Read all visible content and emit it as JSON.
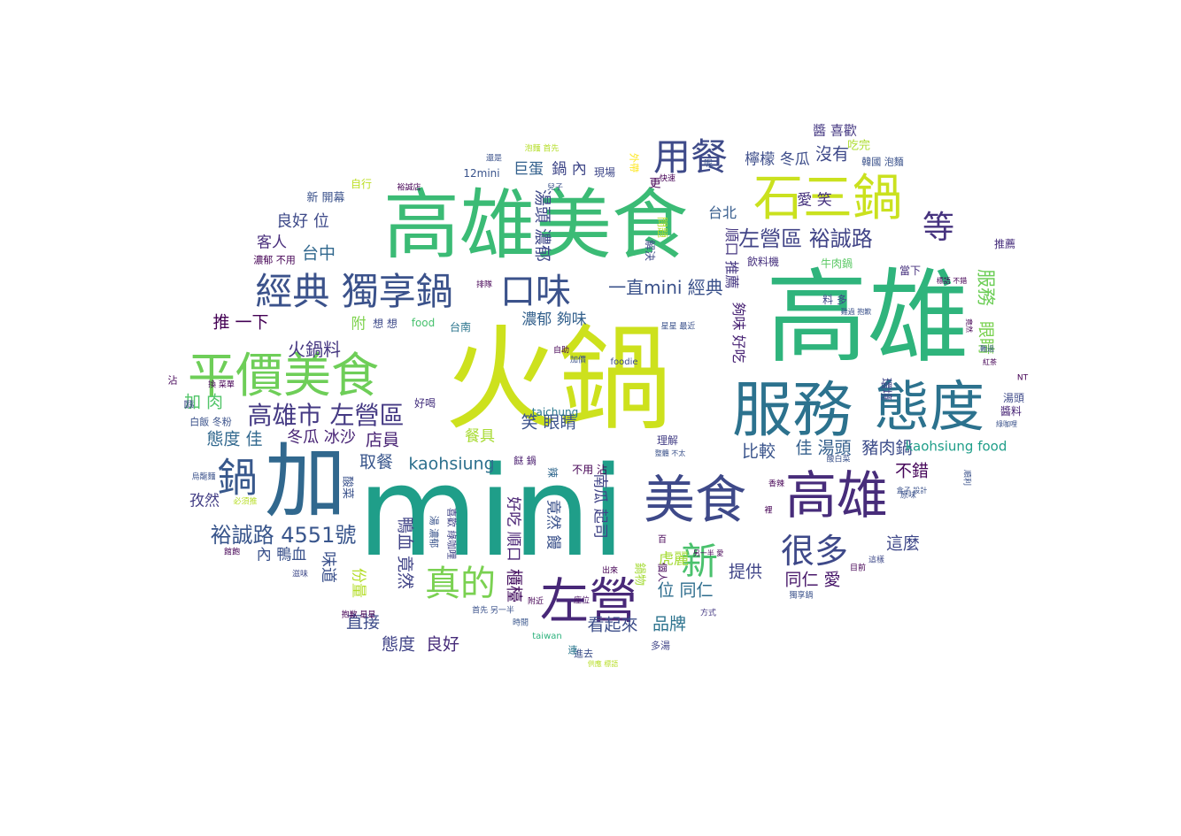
{
  "words": [
    {
      "text": "火鍋",
      "color": "#cde11d"
    },
    {
      "text": "mini",
      "color": "#1f9e89"
    },
    {
      "text": "高雄",
      "color": "#2fb47c"
    },
    {
      "text": "高雄美食",
      "color": "#3bbb75"
    },
    {
      "text": "加",
      "color": "#31688e"
    },
    {
      "text": "服務",
      "color": "#2c728e"
    },
    {
      "text": "態度",
      "color": "#2c728e"
    },
    {
      "text": "美食",
      "color": "#3e4989"
    },
    {
      "text": "高雄",
      "color": "#472c7a"
    },
    {
      "text": "左營",
      "color": "#482878"
    },
    {
      "text": "平價美食",
      "color": "#6ece58"
    },
    {
      "text": "石三鍋",
      "color": "#cae11f"
    },
    {
      "text": "經典 獨享鍋",
      "color": "#3b528b"
    },
    {
      "text": "用餐",
      "color": "#3e4a89"
    },
    {
      "text": "口味",
      "color": "#3b528b"
    },
    {
      "text": "鍋",
      "color": "#38588c"
    },
    {
      "text": "真的",
      "color": "#7ad151"
    },
    {
      "text": "很多",
      "color": "#3e4989"
    },
    {
      "text": "新",
      "color": "#4ac16d"
    },
    {
      "text": "等",
      "color": "#46337f"
    },
    {
      "text": "高雄市 左營區",
      "color": "#443983"
    },
    {
      "text": "左營區 裕誠路",
      "color": "#414487"
    },
    {
      "text": "裕誠路 4551號",
      "color": "#39568c"
    },
    {
      "text": "一直mini 經典",
      "color": "#3b528b"
    },
    {
      "text": "kaohsiung",
      "color": "#2d708e"
    },
    {
      "text": "服務",
      "color": "#6ece58"
    },
    {
      "text": "眼睛",
      "color": "#7ad151"
    },
    {
      "text": "火鍋料",
      "color": "#453781"
    },
    {
      "text": "推 一下",
      "color": "#440154"
    },
    {
      "text": "加 肉",
      "color": "#52c569"
    },
    {
      "text": "態度 佳",
      "color": "#31688e"
    },
    {
      "text": "冬瓜 冰沙",
      "color": "#482475"
    },
    {
      "text": "店員",
      "color": "#482374"
    },
    {
      "text": "取餐",
      "color": "#39568c"
    },
    {
      "text": "比較",
      "color": "#3a548c"
    },
    {
      "text": "佳 湯頭",
      "color": "#35608d"
    },
    {
      "text": "豬肉鍋",
      "color": "#3d4d8a"
    },
    {
      "text": "kaohsiung food",
      "color": "#1f9e89"
    },
    {
      "text": "不錯",
      "color": "#450559"
    },
    {
      "text": "這麼",
      "color": "#3f4889"
    },
    {
      "text": "提供",
      "color": "#404588"
    },
    {
      "text": "同仁 愛",
      "color": "#48186a"
    },
    {
      "text": "品牌",
      "color": "#2c738e"
    },
    {
      "text": "位 同仁",
      "color": "#2e6d8e"
    },
    {
      "text": "看起來",
      "color": "#3d4e8a"
    },
    {
      "text": "直接",
      "color": "#3e4c8a"
    },
    {
      "text": "態度",
      "color": "#404387"
    },
    {
      "text": "良好",
      "color": "#472c7a"
    },
    {
      "text": "虎麗",
      "color": "#a5db36"
    },
    {
      "text": "櫃檯",
      "color": "#440f5f"
    },
    {
      "text": "鴨血 竟然",
      "color": "#414487"
    },
    {
      "text": "湯頭 濃郁",
      "color": "#3f4889"
    },
    {
      "text": "笑 眼睛",
      "color": "#3b528b"
    },
    {
      "text": "餐具",
      "color": "#a8db34"
    },
    {
      "text": "濃郁 夠味",
      "color": "#34618d"
    },
    {
      "text": "檸檬 冬瓜",
      "color": "#3d4d8a"
    },
    {
      "text": "沒有",
      "color": "#3e4989"
    },
    {
      "text": "愛 笑",
      "color": "#46327e"
    },
    {
      "text": "台北",
      "color": "#365c8d"
    },
    {
      "text": "良好 位",
      "color": "#3e4a89"
    },
    {
      "text": "客人",
      "color": "#472d7b"
    },
    {
      "text": "台中",
      "color": "#31688e"
    },
    {
      "text": "孜然",
      "color": "#433e85"
    },
    {
      "text": "內 鴨血",
      "color": "#3b528b"
    },
    {
      "text": "味道",
      "color": "#3b518b"
    },
    {
      "text": "份量",
      "color": "#b5de2b"
    },
    {
      "text": "附",
      "color": "#7fd34e"
    },
    {
      "text": "巨蛋",
      "color": "#34618d"
    },
    {
      "text": "鍋 內",
      "color": "#3f4788"
    },
    {
      "text": "醬 喜歡",
      "color": "#453882"
    },
    {
      "text": "吃完",
      "color": "#addc30"
    },
    {
      "text": "新 開幕",
      "color": "#3b528b"
    },
    {
      "text": "自行",
      "color": "#bddf26"
    },
    {
      "text": "12mini",
      "color": "#3a548c"
    },
    {
      "text": "現場",
      "color": "#3f4889"
    },
    {
      "text": "飲料機",
      "color": "#46307e"
    },
    {
      "text": "牛肉鍋",
      "color": "#5ac864"
    },
    {
      "text": "料 多",
      "color": "#3e4989"
    },
    {
      "text": "當下",
      "color": "#46307e"
    },
    {
      "text": "推薦",
      "color": "#472e7c"
    },
    {
      "text": "湯頭",
      "color": "#3e4a89"
    },
    {
      "text": "醬料",
      "color": "#482576"
    },
    {
      "text": "環境",
      "color": "#404588"
    },
    {
      "text": "taichung",
      "color": "#2a788e"
    },
    {
      "text": "理解",
      "color": "#433e85"
    },
    {
      "text": "不用 沾",
      "color": "#440154"
    },
    {
      "text": "好喝",
      "color": "#46327e"
    },
    {
      "text": "台南",
      "color": "#2b758e"
    },
    {
      "text": "food",
      "color": "#48c16e"
    },
    {
      "text": "想 想",
      "color": "#3e4a89"
    },
    {
      "text": "進去",
      "color": "#3c4f8a"
    },
    {
      "text": "foodie",
      "color": "#3d4e8a"
    },
    {
      "text": "taiwan",
      "color": "#2db27d"
    },
    {
      "text": "多湯",
      "color": "#404588"
    },
    {
      "text": "連",
      "color": "#2a778e"
    },
    {
      "text": "時間",
      "color": "#39568c"
    },
    {
      "text": "座位",
      "color": "#471063"
    },
    {
      "text": "白飯 冬粉",
      "color": "#3b528b"
    },
    {
      "text": "濃郁 不用",
      "color": "#440154"
    },
    {
      "text": "酸菜",
      "color": "#3b528b"
    },
    {
      "text": "個人",
      "color": "#46075a"
    },
    {
      "text": "夠味 好吃",
      "color": "#482374"
    },
    {
      "text": "順口 推薦",
      "color": "#453781"
    },
    {
      "text": "好吃 順口",
      "color": "#482173"
    },
    {
      "text": "竟然 饅",
      "color": "#3b528b"
    },
    {
      "text": "南瓜 起司",
      "color": "#414487"
    },
    {
      "text": "鍋物",
      "color": "#a5db36"
    },
    {
      "text": "喜歡 綠咖哩",
      "color": "#414487"
    },
    {
      "text": "湯 濃郁",
      "color": "#3a548c"
    },
    {
      "text": "餸 鍋",
      "color": "#481b6d"
    },
    {
      "text": "沾",
      "color": "#450559"
    },
    {
      "text": "醬",
      "color": "#3e4989"
    },
    {
      "text": "換 菜單",
      "color": "#440154"
    },
    {
      "text": "辣",
      "color": "#31688e"
    },
    {
      "text": "NT",
      "color": "#440154"
    },
    {
      "text": "百",
      "color": "#440154"
    },
    {
      "text": "另一半 愛",
      "color": "#440154"
    },
    {
      "text": "方式",
      "color": "#443983"
    },
    {
      "text": "這樣",
      "color": "#3e4989"
    },
    {
      "text": "獨享鍋",
      "color": "#3b528b"
    },
    {
      "text": "目前",
      "color": "#440154"
    },
    {
      "text": "原味",
      "color": "#3b528b"
    },
    {
      "text": "烏龍麵",
      "color": "#3b528b"
    },
    {
      "text": "必須推",
      "color": "#b8de29"
    },
    {
      "text": "館飽",
      "color": "#440154"
    },
    {
      "text": "滋味",
      "color": "#3e4989"
    },
    {
      "text": "首先 另一半",
      "color": "#3b528b"
    },
    {
      "text": "抱歉 星星",
      "color": "#440154"
    },
    {
      "text": "附近",
      "color": "#440154"
    },
    {
      "text": "出來",
      "color": "#440154"
    },
    {
      "text": "韓國 泡麵",
      "color": "#3b528b"
    },
    {
      "text": "快速",
      "color": "#440154"
    },
    {
      "text": "更",
      "color": "#440154"
    },
    {
      "text": "呢",
      "color": "#3b528b"
    },
    {
      "text": "外帶",
      "color": "#fde725"
    },
    {
      "text": "問題",
      "color": "#b5de2b"
    },
    {
      "text": "解決",
      "color": "#3e4989"
    },
    {
      "text": "兒子",
      "color": "#3b528b"
    },
    {
      "text": "泡麵 首先",
      "color": "#b5de2b"
    },
    {
      "text": "還是",
      "color": "#3b528b"
    },
    {
      "text": "裕誠店",
      "color": "#440154"
    },
    {
      "text": "排隊",
      "color": "#440154"
    },
    {
      "text": "自助",
      "color": "#440154"
    },
    {
      "text": "加價",
      "color": "#3b528b"
    },
    {
      "text": "星星 最近",
      "color": "#3b528b"
    },
    {
      "text": "盒子 設計",
      "color": "#3b528b"
    },
    {
      "text": "香辣",
      "color": "#440154"
    },
    {
      "text": "順利",
      "color": "#3b528b"
    },
    {
      "text": "酸白菜",
      "color": "#3b528b"
    },
    {
      "text": "整體 不太",
      "color": "#3b528b"
    },
    {
      "text": "標語 不錯",
      "color": "#440154"
    },
    {
      "text": "紅茶",
      "color": "#440154"
    },
    {
      "text": "綠咖哩",
      "color": "#3b528b"
    },
    {
      "text": "難過 抱歉",
      "color": "#3b528b"
    },
    {
      "text": "竟然",
      "color": "#440154"
    },
    {
      "text": "難過",
      "color": "#3b528b"
    },
    {
      "text": "裡",
      "color": "#440154"
    },
    {
      "text": "供應 標語",
      "color": "#b8de29"
    }
  ]
}
